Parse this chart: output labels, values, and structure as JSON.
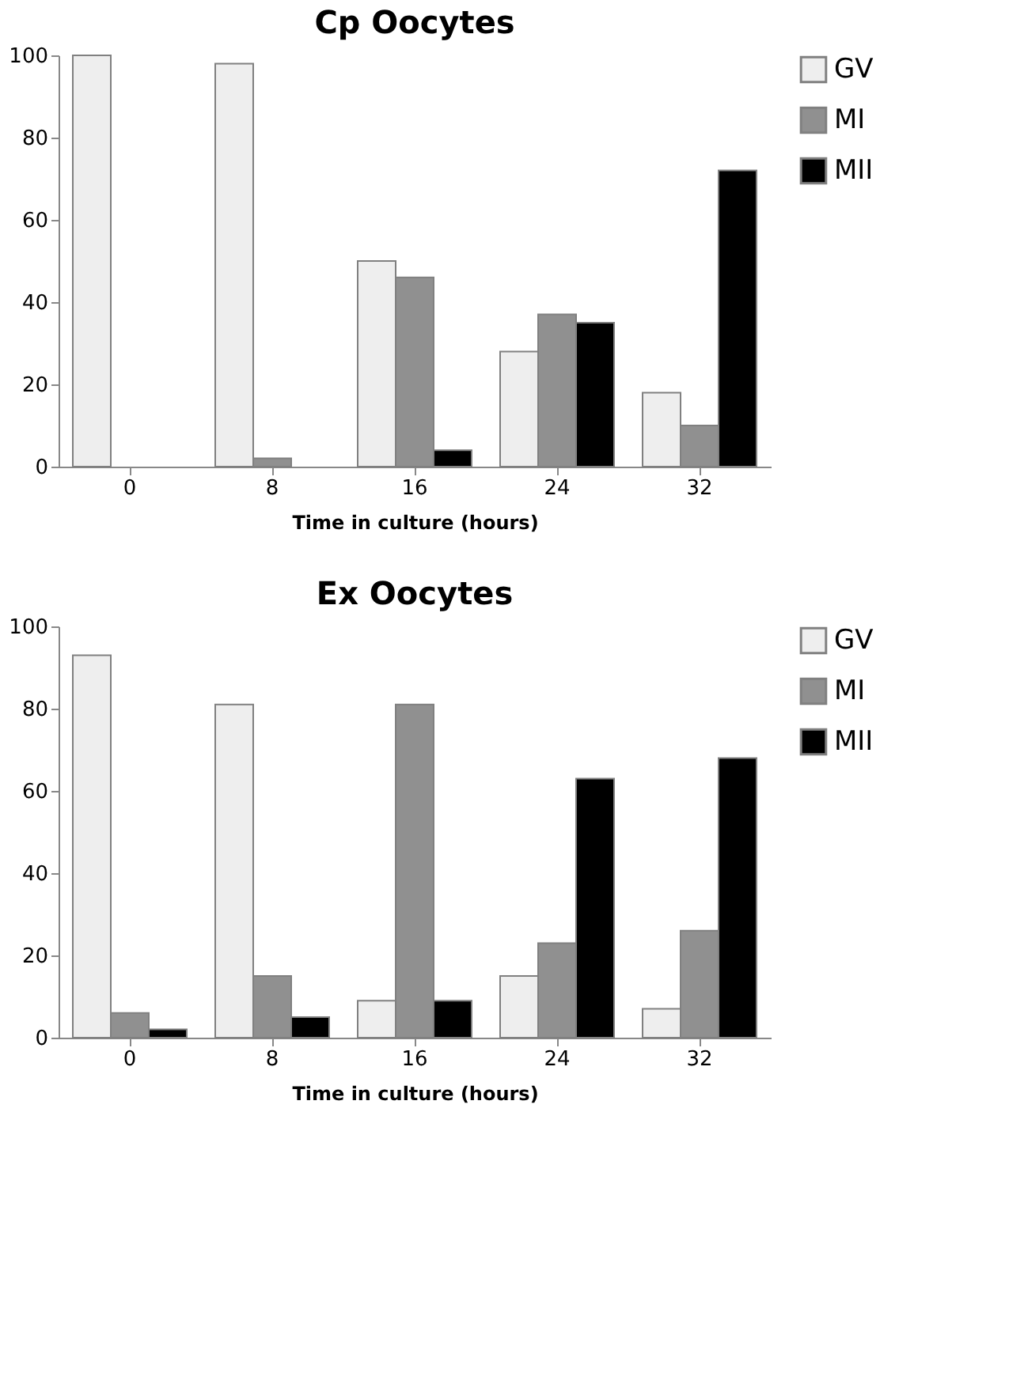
{
  "chart_data": [
    {
      "type": "bar",
      "title": "Cp Oocytes",
      "xlabel": "Time in culture (hours)",
      "categories": [
        "0",
        "8",
        "16",
        "24",
        "32"
      ],
      "series": [
        {
          "name": "GV",
          "color": "#eeeeee",
          "values": [
            100,
            98,
            50,
            28,
            18
          ]
        },
        {
          "name": "MI",
          "color": "#909090",
          "values": [
            0,
            2,
            46,
            37,
            10
          ]
        },
        {
          "name": "MII",
          "color": "#000000",
          "values": [
            0,
            0,
            4,
            35,
            72
          ]
        }
      ],
      "ylim": [
        0,
        100
      ],
      "yticks": [
        0,
        20,
        40,
        60,
        80,
        100
      ],
      "grid": false,
      "legend": "right"
    },
    {
      "type": "bar",
      "title": "Ex Oocytes",
      "xlabel": "Time in culture (hours)",
      "categories": [
        "0",
        "8",
        "16",
        "24",
        "32"
      ],
      "series": [
        {
          "name": "GV",
          "color": "#eeeeee",
          "values": [
            93,
            81,
            9,
            15,
            7
          ]
        },
        {
          "name": "MI",
          "color": "#909090",
          "values": [
            6,
            15,
            81,
            23,
            26
          ]
        },
        {
          "name": "MII",
          "color": "#000000",
          "values": [
            2,
            5,
            9,
            63,
            68
          ]
        }
      ],
      "ylim": [
        0,
        100
      ],
      "yticks": [
        0,
        20,
        40,
        60,
        80,
        100
      ],
      "grid": false,
      "legend": "right"
    }
  ]
}
